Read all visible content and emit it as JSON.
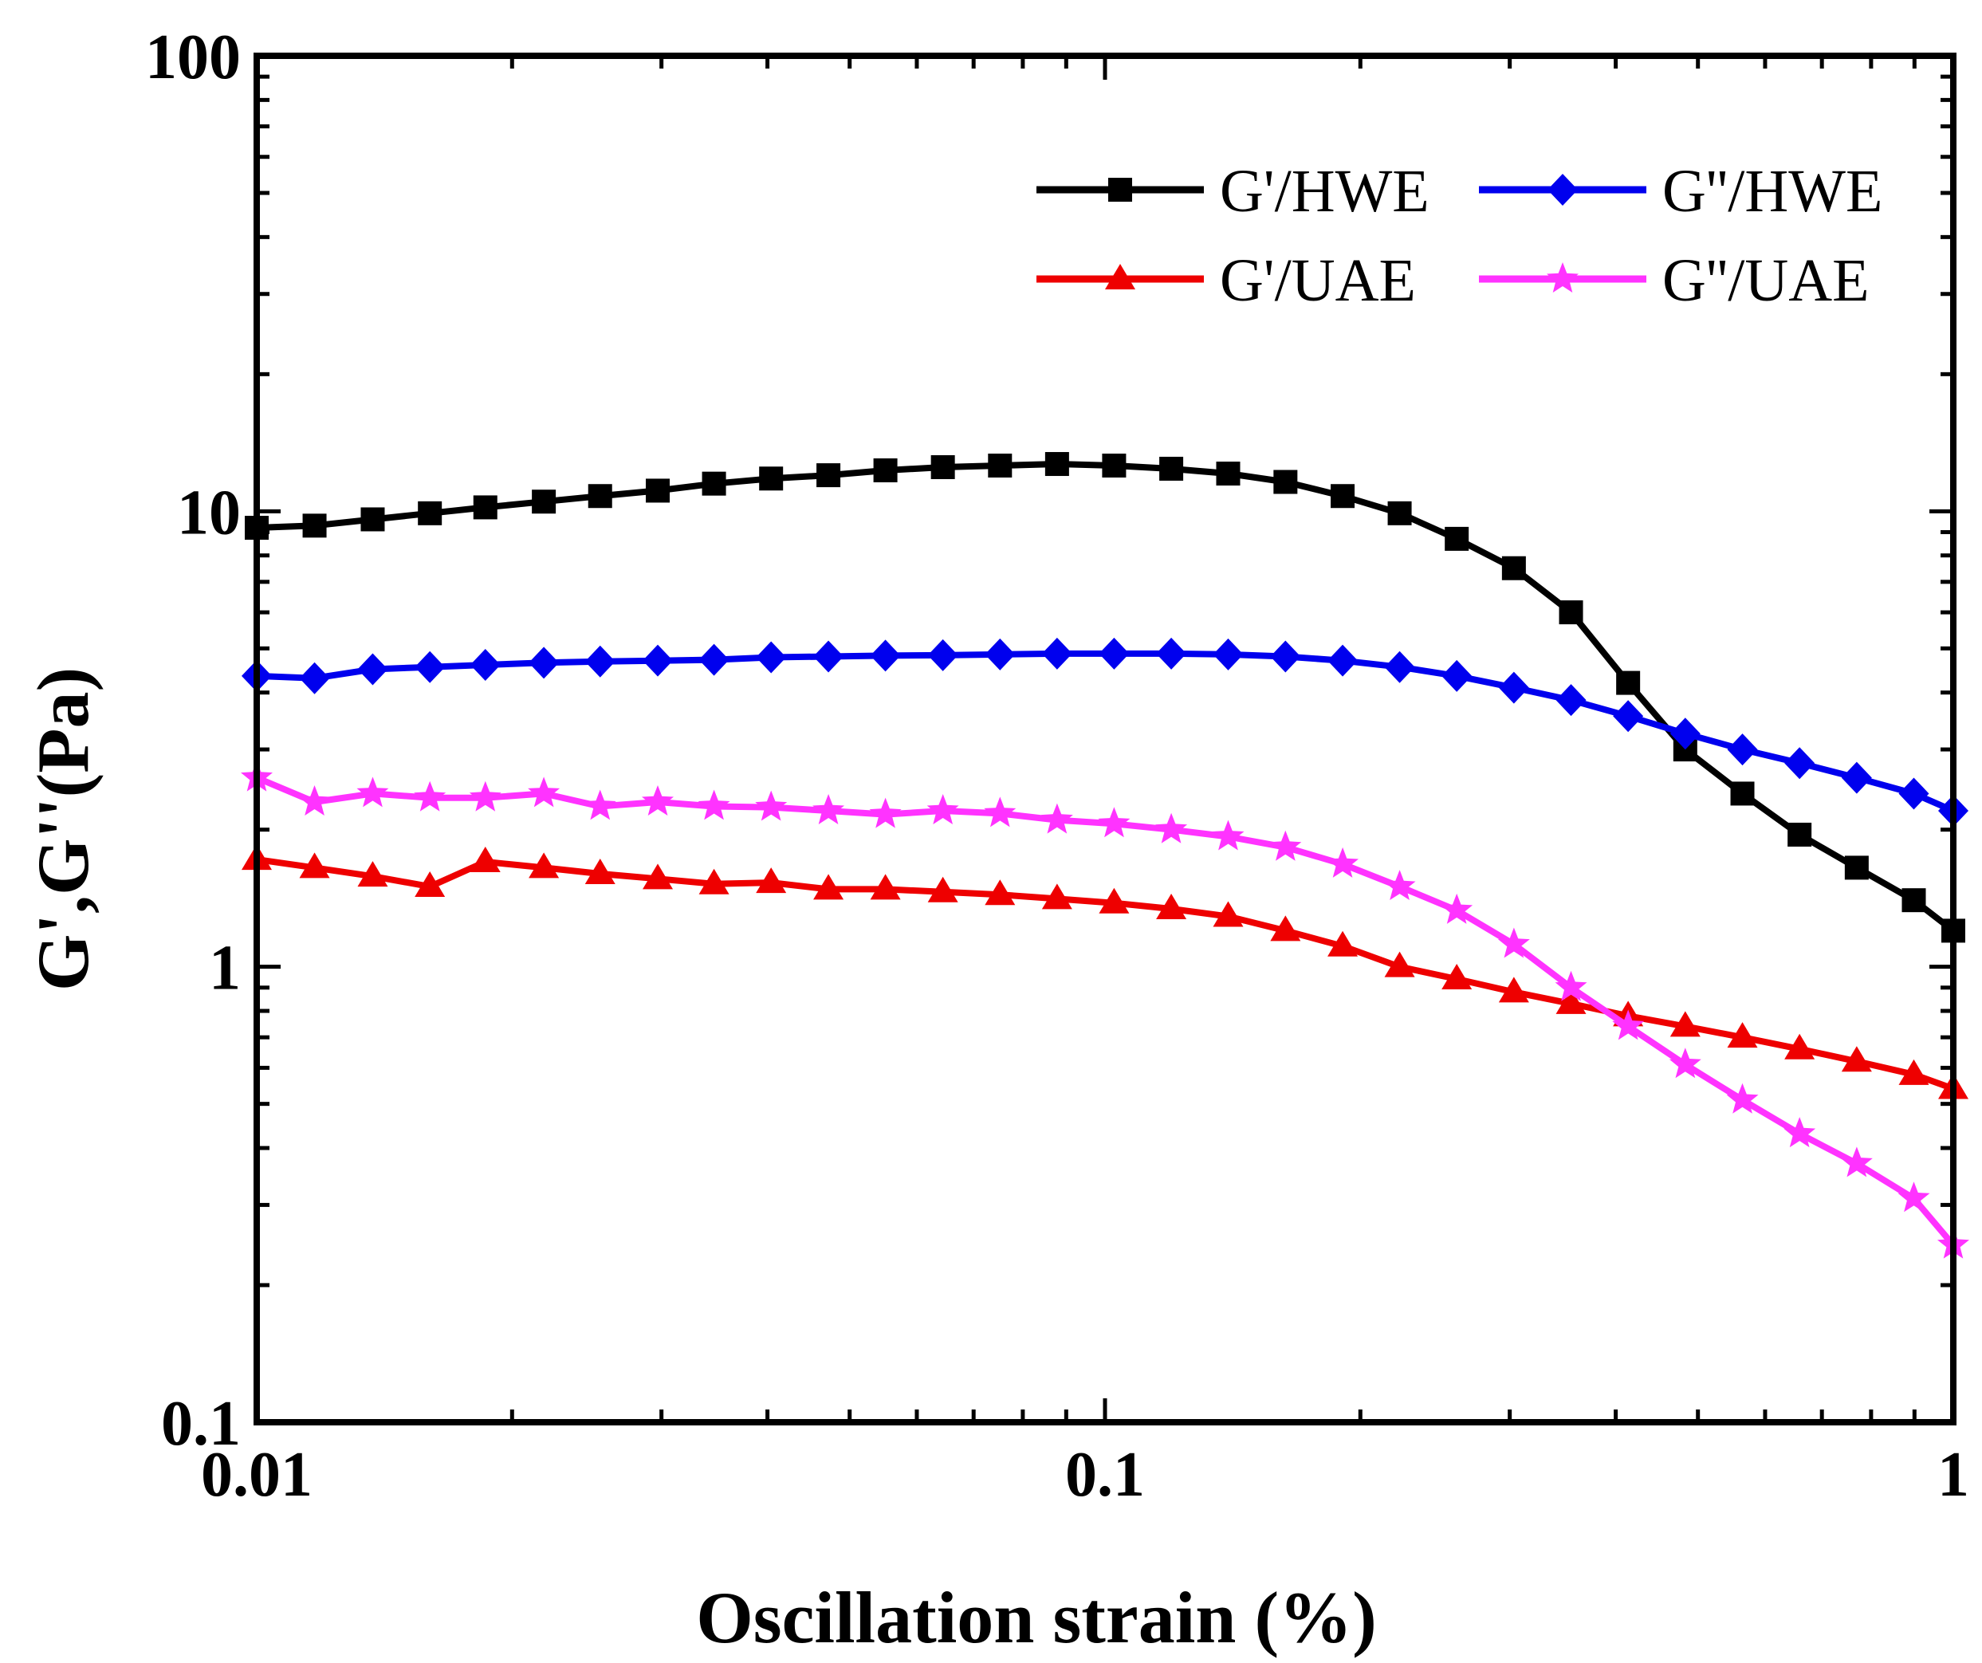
{
  "chart_data": {
    "type": "line",
    "xscale": "log",
    "yscale": "log",
    "xlabel": "Oscillation strain (%)",
    "ylabel": "G',G''(Pa)",
    "xlim": [
      0.01,
      1
    ],
    "ylim": [
      0.1,
      100
    ],
    "x_ticks": [
      {
        "value": 0.01,
        "label": "0.01"
      },
      {
        "value": 0.1,
        "label": "0.1"
      },
      {
        "value": 1,
        "label": "1"
      }
    ],
    "y_ticks": [
      {
        "value": 0.1,
        "label": "0.1"
      },
      {
        "value": 1,
        "label": "1"
      },
      {
        "value": 10,
        "label": "10"
      },
      {
        "value": 100,
        "label": "100"
      }
    ],
    "legend_position": "top-right",
    "x": [
      0.01,
      0.0117,
      0.0137,
      0.016,
      0.0186,
      0.0218,
      0.0254,
      0.0297,
      0.0346,
      0.0404,
      0.0472,
      0.0551,
      0.0644,
      0.0752,
      0.0878,
      0.1025,
      0.1197,
      0.1397,
      0.1632,
      0.1906,
      0.2225,
      0.2598,
      0.3034,
      0.3543,
      0.4137,
      0.4831,
      0.5642,
      0.6588,
      0.7694,
      0.8984,
      1.0
    ],
    "series": [
      {
        "name": "G'/HWE",
        "color": "#000000",
        "marker": "square",
        "values": [
          9.2,
          9.3,
          9.6,
          9.9,
          10.2,
          10.5,
          10.8,
          11.1,
          11.5,
          11.8,
          12.0,
          12.3,
          12.5,
          12.6,
          12.7,
          12.6,
          12.4,
          12.1,
          11.6,
          10.8,
          9.9,
          8.7,
          7.5,
          6.0,
          4.2,
          3.0,
          2.4,
          1.95,
          1.65,
          1.4,
          1.2
        ]
      },
      {
        "name": "G''/HWE",
        "color": "#0000ee",
        "marker": "diamond",
        "values": [
          4.35,
          4.3,
          4.5,
          4.55,
          4.6,
          4.65,
          4.68,
          4.7,
          4.72,
          4.78,
          4.8,
          4.82,
          4.83,
          4.85,
          4.87,
          4.87,
          4.87,
          4.85,
          4.8,
          4.7,
          4.55,
          4.35,
          4.1,
          3.85,
          3.55,
          3.25,
          3.0,
          2.8,
          2.6,
          2.4,
          2.2
        ]
      },
      {
        "name": "G'/UAE",
        "color": "#ee0000",
        "marker": "triangle",
        "values": [
          1.72,
          1.65,
          1.58,
          1.5,
          1.7,
          1.65,
          1.6,
          1.56,
          1.52,
          1.53,
          1.48,
          1.48,
          1.46,
          1.44,
          1.41,
          1.38,
          1.34,
          1.29,
          1.2,
          1.11,
          1.0,
          0.94,
          0.88,
          0.83,
          0.78,
          0.74,
          0.7,
          0.66,
          0.62,
          0.58,
          0.54
        ]
      },
      {
        "name": "G''/UAE",
        "color": "#ff33ff",
        "marker": "star",
        "values": [
          2.6,
          2.3,
          2.4,
          2.35,
          2.35,
          2.4,
          2.25,
          2.3,
          2.25,
          2.24,
          2.2,
          2.16,
          2.2,
          2.17,
          2.1,
          2.06,
          2.0,
          1.93,
          1.83,
          1.68,
          1.5,
          1.33,
          1.12,
          0.9,
          0.74,
          0.61,
          0.51,
          0.43,
          0.37,
          0.31,
          0.245
        ]
      }
    ]
  }
}
